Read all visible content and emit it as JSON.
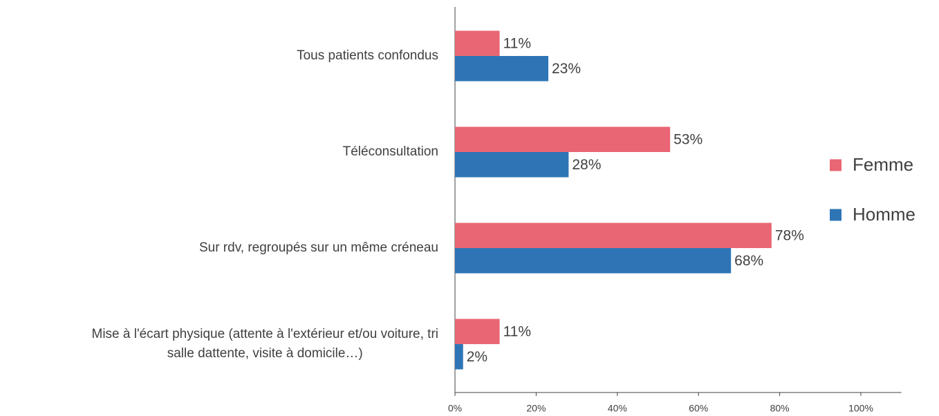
{
  "chart_data": {
    "type": "barh",
    "categories": [
      "Tous patients confondus",
      "Téléconsultation",
      "Sur rdv, regroupés sur un même créneau",
      "Mise à l'écart physique (attente à l'extérieur et/ou voiture, tri\nsalle dattente, visite à domicile…)"
    ],
    "series": [
      {
        "name": "Femme",
        "color": "#e96674",
        "values": [
          11,
          53,
          78,
          11
        ],
        "value_labels": [
          "11%",
          "53%",
          "78%",
          "11%"
        ]
      },
      {
        "name": "Homme",
        "color": "#2e75b6",
        "values": [
          23,
          28,
          68,
          2
        ],
        "value_labels": [
          "23%",
          "28%",
          "68%",
          "2%"
        ]
      }
    ],
    "xlim": [
      0,
      110
    ],
    "xticks": [
      {
        "value": 0,
        "label": "0%"
      },
      {
        "value": 20,
        "label": "20%"
      },
      {
        "value": 40,
        "label": "40%"
      },
      {
        "value": 60,
        "label": "60%"
      },
      {
        "value": 80,
        "label": "80%"
      },
      {
        "value": 100,
        "label": "100%"
      }
    ],
    "legend": "right"
  }
}
